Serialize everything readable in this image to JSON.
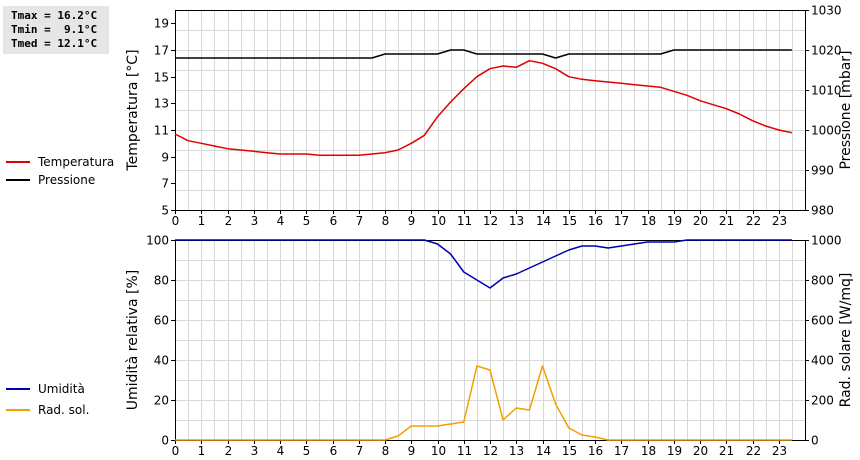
{
  "stats": {
    "tmax": "Tmax = 16.2°C",
    "tmin": "Tmin =  9.1°C",
    "tmed": "Tmed = 12.1°C"
  },
  "colors": {
    "temperatura": "#e00000",
    "pressione": "#000000",
    "umidita": "#0000b0",
    "radsol": "#f0a000",
    "grid": "#d8d8d8"
  },
  "chart_data": [
    {
      "type": "line",
      "x_ticks": [
        0,
        1,
        2,
        3,
        4,
        5,
        6,
        7,
        8,
        9,
        10,
        11,
        12,
        13,
        14,
        15,
        16,
        17,
        18,
        19,
        20,
        21,
        22,
        23
      ],
      "xlim": [
        0,
        24
      ],
      "ylabel": "Temperatura [°C]",
      "ylim": [
        5,
        20
      ],
      "y_ticks": [
        5,
        7,
        9,
        11,
        13,
        15,
        17,
        19
      ],
      "y2label": "Pressione [mbar]",
      "y2lim": [
        980,
        1030
      ],
      "y2_ticks": [
        980,
        990,
        1000,
        1010,
        1020,
        1030
      ],
      "grid": true,
      "legend_position": "left",
      "series": [
        {
          "name": "Temperatura",
          "axis": "left",
          "color": "#e00000",
          "x": [
            0,
            0.5,
            1,
            1.5,
            2,
            2.5,
            3,
            3.5,
            4,
            4.5,
            5,
            5.5,
            6,
            6.5,
            7,
            7.5,
            8,
            8.5,
            9,
            9.5,
            10,
            10.5,
            11,
            11.5,
            12,
            12.5,
            13,
            13.5,
            14,
            14.5,
            15,
            15.5,
            16,
            16.5,
            17,
            17.5,
            18,
            18.5,
            19,
            19.5,
            20,
            20.5,
            21,
            21.5,
            22,
            22.5,
            23,
            23.5
          ],
          "values": [
            10.7,
            10.2,
            10.0,
            9.8,
            9.6,
            9.5,
            9.4,
            9.3,
            9.2,
            9.2,
            9.2,
            9.1,
            9.1,
            9.1,
            9.1,
            9.2,
            9.3,
            9.5,
            10.0,
            10.6,
            12.0,
            13.1,
            14.1,
            15.0,
            15.6,
            15.8,
            15.7,
            16.2,
            16.0,
            15.6,
            15.0,
            14.8,
            14.7,
            14.6,
            14.5,
            14.4,
            14.3,
            14.2,
            13.9,
            13.6,
            13.2,
            12.9,
            12.6,
            12.2,
            11.7,
            11.3,
            11.0,
            10.8
          ]
        },
        {
          "name": "Pressione",
          "axis": "right",
          "color": "#000000",
          "x": [
            0,
            7.5,
            8,
            10,
            10.5,
            11,
            11.5,
            14,
            14.5,
            15,
            18.5,
            19,
            23.5
          ],
          "values": [
            1018,
            1018,
            1019,
            1019,
            1020,
            1020,
            1019,
            1019,
            1018,
            1019,
            1019,
            1020,
            1020
          ]
        }
      ]
    },
    {
      "type": "line",
      "x_ticks": [
        0,
        1,
        2,
        3,
        4,
        5,
        6,
        7,
        8,
        9,
        10,
        11,
        12,
        13,
        14,
        15,
        16,
        17,
        18,
        19,
        20,
        21,
        22,
        23
      ],
      "xlim": [
        0,
        24
      ],
      "ylabel": "Umidità relativa [%]",
      "ylim": [
        0,
        100
      ],
      "y_ticks": [
        0,
        20,
        40,
        60,
        80,
        100
      ],
      "y2label": "Rad. solare [W/mq]",
      "y2lim": [
        0,
        1000
      ],
      "y2_ticks": [
        0,
        200,
        400,
        600,
        800,
        1000
      ],
      "grid": true,
      "legend_position": "left",
      "series": [
        {
          "name": "Umidità",
          "axis": "left",
          "color": "#0000b0",
          "x": [
            0,
            9.5,
            10,
            10.5,
            11,
            11.5,
            12,
            12.5,
            13,
            13.5,
            14,
            14.5,
            15,
            15.5,
            16,
            16.5,
            17,
            17.5,
            18,
            18.5,
            19,
            19.5,
            20,
            23.5
          ],
          "values": [
            100,
            100,
            98,
            93,
            84,
            80,
            76,
            81,
            83,
            86,
            89,
            92,
            95,
            97,
            97,
            96,
            97,
            98,
            99,
            99,
            99,
            100,
            100,
            100
          ]
        },
        {
          "name": "Rad. sol.",
          "axis": "right",
          "color": "#f0a000",
          "x": [
            0,
            8,
            8.5,
            9,
            9.5,
            10,
            10.5,
            11,
            11.5,
            12,
            12.5,
            13,
            13.5,
            14,
            14.5,
            15,
            15.5,
            16,
            16.5,
            23.5
          ],
          "values": [
            0,
            0,
            20,
            70,
            70,
            70,
            80,
            90,
            370,
            350,
            100,
            160,
            150,
            370,
            180,
            60,
            25,
            15,
            0,
            0
          ]
        }
      ]
    }
  ]
}
